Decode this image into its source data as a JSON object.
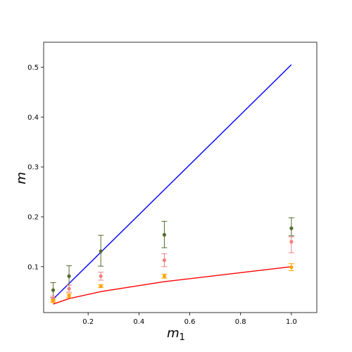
{
  "chart_data": {
    "type": "line",
    "xlabel": "m",
    "xlabel_sub": "1",
    "ylabel": "m",
    "xlim": [
      0.025,
      1.1
    ],
    "ylim": [
      0.008,
      0.55
    ],
    "xticks": [
      0.2,
      0.4,
      0.6,
      0.8,
      1.0
    ],
    "xtick_labels": [
      "0.2",
      "0.4",
      "0.6",
      "0.8",
      "1.0"
    ],
    "yticks": [
      0.1,
      0.2,
      0.3,
      0.4,
      0.5
    ],
    "ytick_labels": [
      "0.1",
      "0.2",
      "0.3",
      "0.4",
      "0.5"
    ],
    "grid": false,
    "lines": [
      {
        "color": "#0000ff",
        "x": [
          0.0625,
          1.0
        ],
        "y": [
          0.035,
          0.505
        ]
      },
      {
        "color": "#ff0000",
        "x": [
          0.0625,
          0.125,
          0.25,
          0.5,
          1.0
        ],
        "y": [
          0.025,
          0.036,
          0.05,
          0.07,
          0.1
        ]
      }
    ],
    "errorbar_series": [
      {
        "color": "#556b2f",
        "x": [
          0.0625,
          0.125,
          0.25,
          0.5,
          1.0
        ],
        "y": [
          0.053,
          0.081,
          0.131,
          0.164,
          0.177
        ],
        "err_low": [
          0.015,
          0.018,
          0.03,
          0.026,
          0.015
        ],
        "err_high": [
          0.015,
          0.021,
          0.032,
          0.027,
          0.021
        ]
      },
      {
        "color": "#f08080",
        "x": [
          0.0625,
          0.125,
          0.25,
          0.5,
          1.0
        ],
        "y": [
          0.036,
          0.056,
          0.081,
          0.113,
          0.15
        ],
        "err_low": [
          0.005,
          0.007,
          0.008,
          0.013,
          0.022
        ],
        "err_high": [
          0.005,
          0.007,
          0.008,
          0.013,
          0.01
        ]
      },
      {
        "color": "#ffa500",
        "x": [
          0.0625,
          0.125,
          0.25,
          0.5,
          1.0
        ],
        "y": [
          0.031,
          0.042,
          0.061,
          0.081,
          0.099
        ],
        "err_low": [
          0.003,
          0.004,
          0.003,
          0.004,
          0.007
        ],
        "err_high": [
          0.003,
          0.004,
          0.003,
          0.004,
          0.007
        ]
      }
    ]
  }
}
